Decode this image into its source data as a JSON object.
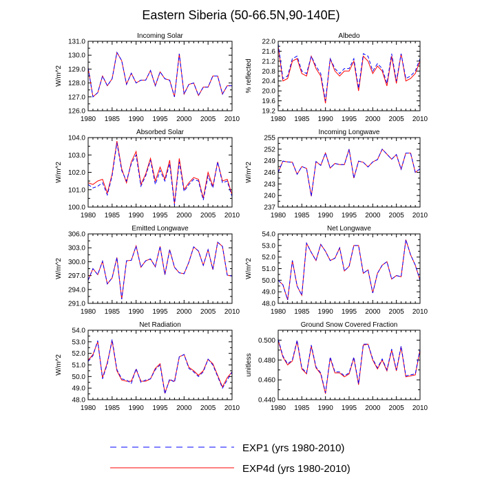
{
  "figure": {
    "title": "Eastern Siberia (50-66.5N,90-140E)",
    "legend": [
      {
        "label": "EXP1 (yrs 1980-2010)",
        "color": "#0000ff",
        "dash": "dashed"
      },
      {
        "label": "EXP4d (yrs 1980-2010)",
        "color": "#ff0000",
        "dash": "solid"
      }
    ],
    "colors": {
      "exp1": "#0000ff",
      "exp4d": "#ff0000"
    }
  },
  "chart_data": [
    {
      "type": "line",
      "title": "Incoming Solar",
      "ylabel": "W/m^2",
      "xlim": [
        1980,
        2010
      ],
      "ylim": [
        126.0,
        131.0
      ],
      "yticks": [
        "126.0",
        "127.0",
        "128.0",
        "129.0",
        "130.0",
        "131.0"
      ],
      "xticks": [
        "1980",
        "1985",
        "1990",
        "1995",
        "2000",
        "2005",
        "2010"
      ],
      "x": [
        1980,
        1981,
        1982,
        1983,
        1984,
        1985,
        1986,
        1987,
        1988,
        1989,
        1990,
        1991,
        1992,
        1993,
        1994,
        1995,
        1996,
        1997,
        1998,
        1999,
        2000,
        2001,
        2002,
        2003,
        2004,
        2005,
        2006,
        2007,
        2008,
        2009,
        2010
      ],
      "series": [
        {
          "name": "EXP1",
          "values": [
            129.1,
            127.0,
            127.3,
            128.5,
            127.8,
            128.3,
            130.2,
            129.6,
            127.9,
            128.7,
            128.0,
            128.2,
            128.2,
            128.9,
            127.8,
            128.8,
            128.3,
            128.2,
            127.0,
            130.1,
            127.2,
            127.9,
            128.0,
            127.1,
            127.7,
            127.7,
            128.5,
            128.5,
            127.2,
            127.8,
            127.8
          ]
        },
        {
          "name": "EXP4d",
          "values": [
            129.1,
            127.0,
            127.3,
            128.5,
            127.8,
            128.3,
            130.2,
            129.6,
            127.9,
            128.7,
            128.0,
            128.2,
            128.2,
            128.9,
            127.8,
            128.8,
            128.3,
            128.2,
            127.0,
            130.1,
            127.2,
            127.9,
            128.0,
            127.1,
            127.7,
            127.7,
            128.5,
            128.5,
            127.2,
            127.8,
            127.8
          ]
        }
      ]
    },
    {
      "type": "line",
      "title": "Albedo",
      "ylabel": "% reflected",
      "xlim": [
        1980,
        2010
      ],
      "ylim": [
        19.2,
        22.0
      ],
      "yticks": [
        "19.2",
        "19.6",
        "20.0",
        "20.4",
        "20.8",
        "21.2",
        "21.6",
        "22.0"
      ],
      "xticks": [
        "1980",
        "1985",
        "1990",
        "1995",
        "2000",
        "2005",
        "2010"
      ],
      "x": [
        1980,
        1981,
        1982,
        1983,
        1984,
        1985,
        1986,
        1987,
        1988,
        1989,
        1990,
        1991,
        1992,
        1993,
        1994,
        1995,
        1996,
        1997,
        1998,
        1999,
        2000,
        2001,
        2002,
        2003,
        2004,
        2005,
        2006,
        2007,
        2008,
        2009,
        2010
      ],
      "series": [
        {
          "name": "EXP1",
          "values": [
            21.9,
            20.5,
            20.6,
            21.3,
            21.4,
            20.8,
            20.7,
            21.4,
            21.0,
            20.7,
            19.6,
            21.3,
            20.9,
            20.7,
            20.9,
            20.9,
            21.3,
            20.1,
            21.5,
            21.4,
            20.8,
            21.1,
            20.9,
            20.3,
            21.5,
            20.4,
            21.5,
            20.5,
            20.6,
            20.8,
            21.3
          ]
        },
        {
          "name": "EXP4d",
          "values": [
            21.8,
            20.4,
            20.5,
            21.2,
            21.3,
            20.7,
            20.6,
            21.4,
            20.9,
            20.6,
            19.5,
            21.3,
            20.8,
            20.6,
            20.8,
            20.8,
            21.2,
            20.0,
            21.4,
            21.2,
            20.7,
            21.0,
            20.8,
            20.2,
            21.4,
            20.3,
            21.5,
            20.4,
            20.5,
            20.7,
            21.2
          ]
        }
      ]
    },
    {
      "type": "line",
      "title": "Absorbed Solar",
      "ylabel": "W/m^2",
      "xlim": [
        1980,
        2010
      ],
      "ylim": [
        100.0,
        104.0
      ],
      "yticks": [
        "100.0",
        "101.0",
        "102.0",
        "103.0",
        "104.0"
      ],
      "xticks": [
        "1980",
        "1985",
        "1990",
        "1995",
        "2000",
        "2005",
        "2010"
      ],
      "x": [
        1980,
        1981,
        1982,
        1983,
        1984,
        1985,
        1986,
        1987,
        1988,
        1989,
        1990,
        1991,
        1992,
        1993,
        1994,
        1995,
        1996,
        1997,
        1998,
        1999,
        2000,
        2001,
        2002,
        2003,
        2004,
        2005,
        2006,
        2007,
        2008,
        2009,
        2010
      ],
      "series": [
        {
          "name": "EXP1",
          "values": [
            101.3,
            101.1,
            101.2,
            101.4,
            100.7,
            101.8,
            103.7,
            102.1,
            101.5,
            102.5,
            103.0,
            101.2,
            101.8,
            102.7,
            101.3,
            102.1,
            101.5,
            102.5,
            100.1,
            102.6,
            100.9,
            101.3,
            101.6,
            101.5,
            100.4,
            101.8,
            101.1,
            102.6,
            101.4,
            101.5,
            100.6
          ]
        },
        {
          "name": "EXP4d",
          "values": [
            101.4,
            101.3,
            101.5,
            101.6,
            100.8,
            101.9,
            103.8,
            102.2,
            101.4,
            102.6,
            103.2,
            101.3,
            101.9,
            102.8,
            101.5,
            102.3,
            101.6,
            102.7,
            100.2,
            102.8,
            101.0,
            101.4,
            101.7,
            101.6,
            100.5,
            102.0,
            101.2,
            102.6,
            101.5,
            101.6,
            100.7
          ]
        }
      ]
    },
    {
      "type": "line",
      "title": "Incoming Longwave",
      "ylabel": "W/m^2",
      "xlim": [
        1980,
        2010
      ],
      "ylim": [
        237,
        255
      ],
      "yticks": [
        "237",
        "240",
        "243",
        "246",
        "249",
        "252",
        "255"
      ],
      "xticks": [
        "1980",
        "1985",
        "1990",
        "1995",
        "2000",
        "2005",
        "2010"
      ],
      "x": [
        1980,
        1981,
        1982,
        1983,
        1984,
        1985,
        1986,
        1987,
        1988,
        1989,
        1990,
        1991,
        1992,
        1993,
        1994,
        1995,
        1996,
        1997,
        1998,
        1999,
        2000,
        2001,
        2002,
        2003,
        2004,
        2005,
        2006,
        2007,
        2008,
        2009,
        2010
      ],
      "series": [
        {
          "name": "EXP1",
          "values": [
            246.0,
            248.9,
            248.7,
            248.6,
            245.5,
            247.5,
            247.0,
            239.8,
            248.8,
            247.8,
            251.0,
            247.1,
            248.3,
            248.0,
            248.0,
            252.0,
            244.5,
            248.9,
            248.6,
            247.4,
            248.7,
            249.3,
            252.0,
            250.7,
            249.4,
            250.6,
            246.8,
            251.0,
            251.0,
            246.0,
            246.9
          ]
        },
        {
          "name": "EXP4d",
          "values": [
            246.0,
            248.9,
            248.7,
            248.6,
            245.5,
            247.5,
            247.0,
            239.8,
            248.8,
            247.8,
            251.0,
            247.1,
            248.3,
            248.0,
            248.0,
            252.0,
            244.5,
            248.9,
            248.6,
            247.4,
            248.7,
            249.3,
            252.0,
            250.7,
            249.4,
            250.6,
            246.8,
            251.0,
            251.0,
            246.0,
            246.9
          ]
        }
      ]
    },
    {
      "type": "line",
      "title": "Emitted Longwave",
      "ylabel": "W/m^2",
      "xlim": [
        1980,
        2010
      ],
      "ylim": [
        291.0,
        306.0
      ],
      "yticks": [
        "291.0",
        "294.0",
        "297.0",
        "300.0",
        "303.0",
        "306.0"
      ],
      "xticks": [
        "1980",
        "1985",
        "1990",
        "1995",
        "2000",
        "2005",
        "2010"
      ],
      "x": [
        1980,
        1981,
        1982,
        1983,
        1984,
        1985,
        1986,
        1987,
        1988,
        1989,
        1990,
        1991,
        1992,
        1993,
        1994,
        1995,
        1996,
        1997,
        1998,
        1999,
        2000,
        2001,
        2002,
        2003,
        2004,
        2005,
        2006,
        2007,
        2008,
        2009,
        2010
      ],
      "series": [
        {
          "name": "EXP1",
          "values": [
            296.0,
            298.5,
            297.2,
            300.1,
            295.2,
            296.5,
            300.9,
            291.9,
            300.2,
            300.3,
            303.4,
            298.8,
            300.2,
            300.6,
            298.9,
            303.3,
            297.2,
            302.6,
            298.8,
            297.6,
            297.4,
            299.9,
            303.2,
            302.3,
            299.2,
            302.6,
            298.3,
            304.2,
            303.3,
            297.1,
            296.9
          ]
        },
        {
          "name": "EXP4d",
          "values": [
            296.0,
            298.5,
            297.2,
            300.1,
            295.2,
            296.5,
            300.9,
            291.9,
            300.2,
            300.3,
            303.4,
            298.8,
            300.2,
            300.6,
            298.9,
            303.3,
            297.2,
            302.6,
            298.8,
            297.6,
            297.4,
            299.9,
            303.2,
            302.3,
            299.2,
            302.6,
            298.3,
            304.2,
            303.3,
            297.1,
            296.9
          ]
        }
      ]
    },
    {
      "type": "line",
      "title": "Net Longwave",
      "ylabel": "W/m^2",
      "xlim": [
        1980,
        2010
      ],
      "ylim": [
        48.0,
        54.0
      ],
      "yticks": [
        "48.0",
        "49.0",
        "50.0",
        "51.0",
        "52.0",
        "53.0",
        "54.0"
      ],
      "xticks": [
        "1980",
        "1985",
        "1990",
        "1995",
        "2000",
        "2005",
        "2010"
      ],
      "x": [
        1980,
        1981,
        1982,
        1983,
        1984,
        1985,
        1986,
        1987,
        1988,
        1989,
        1990,
        1991,
        1992,
        1993,
        1994,
        1995,
        1996,
        1997,
        1998,
        1999,
        2000,
        2001,
        2002,
        2003,
        2004,
        2005,
        2006,
        2007,
        2008,
        2009,
        2010
      ],
      "series": [
        {
          "name": "EXP1",
          "values": [
            50.0,
            49.6,
            48.3,
            51.7,
            49.5,
            48.7,
            53.2,
            52.4,
            51.7,
            53.1,
            52.5,
            51.7,
            51.9,
            52.8,
            50.8,
            51.2,
            53.0,
            53.0,
            50.6,
            50.9,
            48.9,
            50.6,
            51.3,
            51.6,
            50.1,
            50.4,
            50.3,
            53.5,
            52.2,
            51.3,
            50.0
          ]
        },
        {
          "name": "EXP4d",
          "values": [
            50.0,
            49.6,
            48.3,
            51.7,
            49.5,
            48.7,
            53.2,
            52.4,
            51.7,
            53.1,
            52.5,
            51.7,
            51.9,
            52.8,
            50.8,
            51.2,
            53.0,
            53.0,
            50.6,
            50.9,
            48.9,
            50.6,
            51.3,
            51.6,
            50.1,
            50.4,
            50.3,
            53.5,
            52.2,
            51.3,
            50.0
          ]
        }
      ]
    },
    {
      "type": "line",
      "title": "Net Radiation",
      "ylabel": "W/m^2",
      "xlim": [
        1980,
        2010
      ],
      "ylim": [
        48.0,
        54.0
      ],
      "yticks": [
        "48.0",
        "49.0",
        "50.0",
        "51.0",
        "52.0",
        "53.0",
        "54.0"
      ],
      "xticks": [
        "1980",
        "1985",
        "1990",
        "1995",
        "2000",
        "2005",
        "2010"
      ],
      "x": [
        1980,
        1981,
        1982,
        1983,
        1984,
        1985,
        1986,
        1987,
        1988,
        1989,
        1990,
        1991,
        1992,
        1993,
        1994,
        1995,
        1996,
        1997,
        1998,
        1999,
        2000,
        2001,
        2002,
        2003,
        2004,
        2005,
        2006,
        2007,
        2008,
        2009,
        2010
      ],
      "series": [
        {
          "name": "EXP1",
          "values": [
            51.3,
            51.8,
            53.1,
            49.8,
            51.1,
            53.2,
            50.6,
            49.8,
            49.7,
            49.4,
            50.7,
            49.5,
            49.7,
            49.8,
            50.6,
            51.0,
            48.5,
            49.8,
            49.5,
            51.7,
            51.9,
            50.7,
            50.4,
            50.0,
            50.4,
            51.5,
            51.0,
            50.0,
            49.0,
            49.7,
            50.4
          ]
        },
        {
          "name": "EXP4d",
          "values": [
            51.4,
            51.9,
            53.0,
            49.9,
            51.2,
            53.1,
            50.5,
            49.7,
            49.6,
            49.6,
            50.6,
            49.6,
            49.6,
            49.8,
            50.7,
            51.1,
            48.6,
            49.7,
            49.6,
            51.7,
            51.9,
            50.8,
            50.5,
            50.1,
            50.5,
            51.5,
            51.1,
            50.1,
            49.1,
            49.9,
            50.4
          ]
        }
      ]
    },
    {
      "type": "line",
      "title": "Ground Snow Covered Fraction",
      "ylabel": "unitless",
      "xlim": [
        1980,
        2010
      ],
      "ylim": [
        0.44,
        0.51
      ],
      "yticks": [
        "0.440",
        "0.460",
        "0.480",
        "0.500"
      ],
      "xticks": [
        "1980",
        "1985",
        "1990",
        "1995",
        "2000",
        "2005",
        "2010"
      ],
      "x": [
        1980,
        1981,
        1982,
        1983,
        1984,
        1985,
        1986,
        1987,
        1988,
        1989,
        1990,
        1991,
        1992,
        1993,
        1994,
        1995,
        1996,
        1997,
        1998,
        1999,
        2000,
        2001,
        2002,
        2003,
        2004,
        2005,
        2006,
        2007,
        2008,
        2009,
        2010
      ],
      "series": [
        {
          "name": "EXP1",
          "values": [
            0.501,
            0.484,
            0.476,
            0.48,
            0.5,
            0.472,
            0.467,
            0.495,
            0.473,
            0.467,
            0.447,
            0.483,
            0.468,
            0.468,
            0.464,
            0.467,
            0.483,
            0.456,
            0.496,
            0.496,
            0.481,
            0.472,
            0.481,
            0.47,
            0.491,
            0.47,
            0.494,
            0.464,
            0.465,
            0.466,
            0.491
          ]
        },
        {
          "name": "EXP4d",
          "values": [
            0.5,
            0.483,
            0.475,
            0.479,
            0.499,
            0.471,
            0.466,
            0.494,
            0.472,
            0.466,
            0.446,
            0.482,
            0.467,
            0.467,
            0.463,
            0.466,
            0.482,
            0.455,
            0.495,
            0.496,
            0.48,
            0.471,
            0.48,
            0.469,
            0.49,
            0.469,
            0.493,
            0.463,
            0.464,
            0.465,
            0.49
          ]
        }
      ]
    }
  ]
}
